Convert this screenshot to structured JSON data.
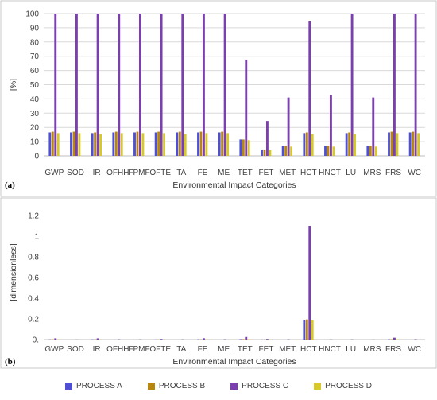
{
  "chart_data": [
    {
      "type": "bar",
      "panel_label": "(a)",
      "xlabel": "Environmental Impact Categories",
      "ylabel": "[%]",
      "ylim": [
        0,
        100
      ],
      "yticks": [
        "0",
        "10",
        "20",
        "30",
        "40",
        "50",
        "60",
        "70",
        "80",
        "90",
        "100"
      ],
      "grid": true,
      "categories": [
        "GWP",
        "SOD",
        "IR",
        "OFHH",
        "FPMF",
        "OFTE",
        "TA",
        "FE",
        "ME",
        "TET",
        "FET",
        "MET",
        "HCT",
        "HNCT",
        "LU",
        "MRS",
        "FRS",
        "WC"
      ],
      "series": [
        {
          "name": "PROCESS A",
          "values": [
            16.5,
            16.5,
            16,
            16.5,
            16.5,
            16.5,
            16.5,
            16.5,
            16.5,
            11.5,
            4.5,
            7,
            16,
            7,
            16,
            7,
            16.5,
            16.5
          ]
        },
        {
          "name": "PROCESS B",
          "values": [
            17,
            17,
            16.5,
            17,
            17,
            17,
            17,
            17,
            17,
            11.5,
            4.5,
            7,
            16.5,
            7,
            16.5,
            7,
            17,
            17
          ]
        },
        {
          "name": "PROCESS C",
          "values": [
            100,
            100,
            100,
            100,
            100,
            100,
            100,
            100,
            100,
            67.5,
            24.5,
            41,
            94.5,
            42.5,
            100,
            41,
            100,
            100
          ]
        },
        {
          "name": "PROCESS D",
          "values": [
            16,
            16,
            15.5,
            16,
            16,
            16,
            15.5,
            16,
            16,
            11,
            4,
            6.5,
            15.5,
            6.5,
            15.5,
            6.5,
            16,
            16
          ]
        }
      ]
    },
    {
      "type": "bar",
      "panel_label": "(b)",
      "xlabel": "Environmental Impact Categories",
      "ylabel": "[dimensionless]",
      "ylim": [
        0,
        1.3
      ],
      "yticks": [
        "0.",
        "0.2",
        "0.4",
        "0.6",
        "0.8",
        "1",
        "1.2"
      ],
      "grid": false,
      "categories": [
        "GWP",
        "SOD",
        "IR",
        "OFHH",
        "FPMF",
        "OFTE",
        "TA",
        "FE",
        "ME",
        "TET",
        "FET",
        "MET",
        "HCT",
        "HNCT",
        "LU",
        "MRS",
        "FRS",
        "WC"
      ],
      "series": [
        {
          "name": "PROCESS A",
          "values": [
            0.002,
            0,
            0.002,
            0,
            0,
            0.001,
            0,
            0.002,
            0,
            0.004,
            0.001,
            0,
            0.19,
            0,
            0,
            0,
            0.003,
            0
          ]
        },
        {
          "name": "PROCESS B",
          "values": [
            0.002,
            0,
            0.002,
            0,
            0,
            0.001,
            0,
            0.002,
            0,
            0.004,
            0.001,
            0,
            0.195,
            0,
            0,
            0,
            0.003,
            0
          ]
        },
        {
          "name": "PROCESS C",
          "values": [
            0.012,
            0.001,
            0.012,
            0.003,
            0.002,
            0.006,
            0.002,
            0.013,
            0.003,
            0.025,
            0.006,
            0.003,
            1.1,
            0.002,
            0.002,
            0.001,
            0.018,
            0.004
          ]
        },
        {
          "name": "PROCESS D",
          "values": [
            0.002,
            0,
            0.002,
            0,
            0,
            0.001,
            0,
            0.002,
            0,
            0.004,
            0.001,
            0,
            0.185,
            0,
            0,
            0,
            0.003,
            0
          ]
        }
      ]
    }
  ],
  "colors": {
    "PROCESS A": "#4f4fd6",
    "PROCESS B": "#b8860b",
    "PROCESS C": "#7b3fb0",
    "PROCESS D": "#d8c92a",
    "grid": "#d9d9d9",
    "axis": "#bfbfbf",
    "frame": "#c8c8c8"
  },
  "legend": {
    "items": [
      {
        "label": "PROCESS A",
        "color": "#4f4fd6"
      },
      {
        "label": "PROCESS B",
        "color": "#b8860b"
      },
      {
        "label": "PROCESS C",
        "color": "#7b3fb0"
      },
      {
        "label": "PROCESS D",
        "color": "#d8c92a"
      }
    ]
  }
}
